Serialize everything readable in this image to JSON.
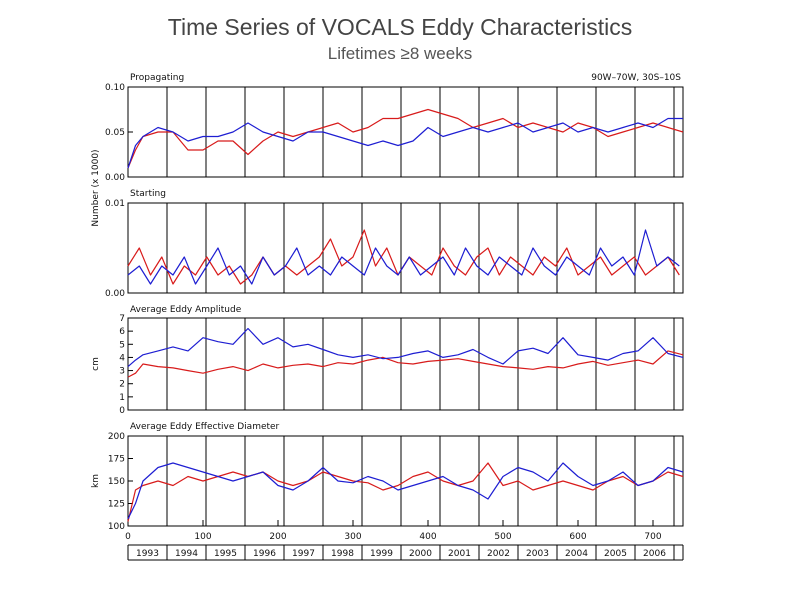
{
  "title": "Time Series of VOCALS Eddy Characteristics",
  "subtitle": "Lifetimes ≥8 weeks",
  "colors": {
    "series_a": "#d81b1b",
    "series_b": "#1e1ed2",
    "frame": "#000000",
    "text": "#111111"
  },
  "chart_data": [
    {
      "type": "line",
      "panel_label": "Propagating",
      "region_label": "90W–70W, 30S–10S",
      "ylim": [
        0,
        0.1
      ],
      "yticks": [
        "0.00",
        "0.05",
        "0.10"
      ],
      "ylabel": "Number (x 1000)",
      "xlim": [
        0,
        740
      ],
      "series": [
        {
          "name": "red",
          "color": "#d81b1b",
          "x": [
            0,
            10,
            20,
            40,
            60,
            80,
            100,
            120,
            140,
            160,
            180,
            200,
            220,
            240,
            260,
            280,
            300,
            320,
            340,
            360,
            380,
            400,
            420,
            440,
            460,
            480,
            500,
            520,
            540,
            560,
            580,
            600,
            620,
            640,
            660,
            680,
            700,
            720,
            740
          ],
          "values": [
            0.01,
            0.03,
            0.045,
            0.05,
            0.05,
            0.03,
            0.03,
            0.04,
            0.04,
            0.025,
            0.04,
            0.05,
            0.045,
            0.05,
            0.055,
            0.06,
            0.05,
            0.055,
            0.065,
            0.065,
            0.07,
            0.075,
            0.07,
            0.065,
            0.055,
            0.06,
            0.065,
            0.055,
            0.06,
            0.055,
            0.05,
            0.06,
            0.055,
            0.045,
            0.05,
            0.055,
            0.06,
            0.055,
            0.05
          ]
        },
        {
          "name": "blue",
          "color": "#1e1ed2",
          "x": [
            0,
            10,
            20,
            40,
            60,
            80,
            100,
            120,
            140,
            160,
            180,
            200,
            220,
            240,
            260,
            280,
            300,
            320,
            340,
            360,
            380,
            400,
            420,
            440,
            460,
            480,
            500,
            520,
            540,
            560,
            580,
            600,
            620,
            640,
            660,
            680,
            700,
            720,
            740
          ],
          "values": [
            0.01,
            0.035,
            0.045,
            0.055,
            0.05,
            0.04,
            0.045,
            0.045,
            0.05,
            0.06,
            0.05,
            0.045,
            0.04,
            0.05,
            0.05,
            0.045,
            0.04,
            0.035,
            0.04,
            0.035,
            0.04,
            0.055,
            0.045,
            0.05,
            0.055,
            0.05,
            0.055,
            0.06,
            0.05,
            0.055,
            0.06,
            0.05,
            0.055,
            0.05,
            0.055,
            0.06,
            0.055,
            0.065,
            0.065
          ]
        }
      ]
    },
    {
      "type": "line",
      "panel_label": "Starting",
      "ylim": [
        0,
        0.01
      ],
      "yticks": [
        "0.00",
        "0.01"
      ],
      "xlim": [
        0,
        740
      ],
      "series": [
        {
          "name": "red",
          "color": "#d81b1b",
          "x": [
            0,
            15,
            30,
            45,
            60,
            75,
            90,
            105,
            120,
            135,
            150,
            165,
            180,
            195,
            210,
            225,
            240,
            255,
            270,
            285,
            300,
            315,
            330,
            345,
            360,
            375,
            390,
            405,
            420,
            435,
            450,
            465,
            480,
            495,
            510,
            525,
            540,
            555,
            570,
            585,
            600,
            615,
            630,
            645,
            660,
            675,
            690,
            705,
            720,
            735
          ],
          "values": [
            0.003,
            0.005,
            0.002,
            0.004,
            0.001,
            0.003,
            0.002,
            0.004,
            0.002,
            0.003,
            0.001,
            0.002,
            0.004,
            0.002,
            0.003,
            0.002,
            0.003,
            0.004,
            0.006,
            0.003,
            0.004,
            0.007,
            0.003,
            0.005,
            0.002,
            0.004,
            0.003,
            0.002,
            0.005,
            0.003,
            0.002,
            0.004,
            0.005,
            0.002,
            0.004,
            0.003,
            0.002,
            0.004,
            0.003,
            0.005,
            0.002,
            0.003,
            0.004,
            0.002,
            0.003,
            0.004,
            0.002,
            0.003,
            0.004,
            0.002
          ]
        },
        {
          "name": "blue",
          "color": "#1e1ed2",
          "x": [
            0,
            15,
            30,
            45,
            60,
            75,
            90,
            105,
            120,
            135,
            150,
            165,
            180,
            195,
            210,
            225,
            240,
            255,
            270,
            285,
            300,
            315,
            330,
            345,
            360,
            375,
            390,
            405,
            420,
            435,
            450,
            465,
            480,
            495,
            510,
            525,
            540,
            555,
            570,
            585,
            600,
            615,
            630,
            645,
            660,
            675,
            690,
            705,
            720,
            735
          ],
          "values": [
            0.002,
            0.003,
            0.001,
            0.003,
            0.002,
            0.004,
            0.001,
            0.003,
            0.005,
            0.002,
            0.003,
            0.001,
            0.004,
            0.002,
            0.003,
            0.005,
            0.002,
            0.003,
            0.002,
            0.004,
            0.003,
            0.002,
            0.005,
            0.003,
            0.002,
            0.004,
            0.002,
            0.003,
            0.004,
            0.002,
            0.005,
            0.003,
            0.002,
            0.004,
            0.003,
            0.002,
            0.005,
            0.003,
            0.002,
            0.004,
            0.003,
            0.002,
            0.005,
            0.003,
            0.004,
            0.002,
            0.007,
            0.003,
            0.004,
            0.003
          ]
        }
      ]
    },
    {
      "type": "line",
      "panel_label": "Average Eddy Amplitude",
      "ylim": [
        0,
        7
      ],
      "yticks": [
        "0",
        "1",
        "2",
        "3",
        "4",
        "5",
        "6",
        "7"
      ],
      "ylabel": "cm",
      "xlim": [
        0,
        740
      ],
      "series": [
        {
          "name": "red",
          "color": "#d81b1b",
          "x": [
            0,
            10,
            20,
            40,
            60,
            80,
            100,
            120,
            140,
            160,
            180,
            200,
            220,
            240,
            260,
            280,
            300,
            320,
            340,
            360,
            380,
            400,
            420,
            440,
            460,
            480,
            500,
            520,
            540,
            560,
            580,
            600,
            620,
            640,
            660,
            680,
            700,
            720,
            740
          ],
          "values": [
            2.5,
            2.8,
            3.5,
            3.3,
            3.2,
            3.0,
            2.8,
            3.1,
            3.3,
            3.0,
            3.5,
            3.2,
            3.4,
            3.5,
            3.3,
            3.6,
            3.5,
            3.8,
            4.0,
            3.6,
            3.5,
            3.7,
            3.8,
            3.9,
            3.7,
            3.5,
            3.3,
            3.2,
            3.1,
            3.3,
            3.2,
            3.5,
            3.7,
            3.4,
            3.6,
            3.8,
            3.5,
            4.5,
            4.2
          ]
        },
        {
          "name": "blue",
          "color": "#1e1ed2",
          "x": [
            0,
            10,
            20,
            40,
            60,
            80,
            100,
            120,
            140,
            160,
            180,
            200,
            220,
            240,
            260,
            280,
            300,
            320,
            340,
            360,
            380,
            400,
            420,
            440,
            460,
            480,
            500,
            520,
            540,
            560,
            580,
            600,
            620,
            640,
            660,
            680,
            700,
            720,
            740
          ],
          "values": [
            3.3,
            3.8,
            4.2,
            4.5,
            4.8,
            4.5,
            5.5,
            5.2,
            5.0,
            6.2,
            5.0,
            5.5,
            4.8,
            5.0,
            4.6,
            4.2,
            4.0,
            4.2,
            3.9,
            4.0,
            4.3,
            4.5,
            4.0,
            4.2,
            4.6,
            4.0,
            3.5,
            4.5,
            4.7,
            4.3,
            5.5,
            4.2,
            4.0,
            3.8,
            4.3,
            4.5,
            5.5,
            4.3,
            4.0
          ]
        }
      ]
    },
    {
      "type": "line",
      "panel_label": "Average Eddy Effective Diameter",
      "ylim": [
        100,
        200
      ],
      "yticks": [
        "100",
        "125",
        "150",
        "175",
        "200"
      ],
      "ylabel": "km",
      "xlabel_ticks": [
        "0",
        "100",
        "200",
        "300",
        "400",
        "500",
        "600",
        "700"
      ],
      "xticks": [
        0,
        100,
        200,
        300,
        400,
        500,
        600,
        700
      ],
      "xlim": [
        0,
        740
      ],
      "series": [
        {
          "name": "red",
          "color": "#d81b1b",
          "x": [
            0,
            10,
            20,
            40,
            60,
            80,
            100,
            120,
            140,
            160,
            180,
            200,
            220,
            240,
            260,
            280,
            300,
            320,
            340,
            360,
            380,
            400,
            420,
            440,
            460,
            480,
            500,
            520,
            540,
            560,
            580,
            600,
            620,
            640,
            660,
            680,
            700,
            720,
            740
          ],
          "values": [
            105,
            140,
            145,
            150,
            145,
            155,
            150,
            155,
            160,
            155,
            160,
            150,
            145,
            150,
            160,
            155,
            150,
            148,
            140,
            145,
            155,
            160,
            150,
            145,
            150,
            170,
            145,
            150,
            140,
            145,
            150,
            145,
            140,
            150,
            155,
            145,
            150,
            160,
            155
          ]
        },
        {
          "name": "blue",
          "color": "#1e1ed2",
          "x": [
            0,
            10,
            20,
            40,
            60,
            80,
            100,
            120,
            140,
            160,
            180,
            200,
            220,
            240,
            260,
            280,
            300,
            320,
            340,
            360,
            380,
            400,
            420,
            440,
            460,
            480,
            500,
            520,
            540,
            560,
            580,
            600,
            620,
            640,
            660,
            680,
            700,
            720,
            740
          ],
          "values": [
            108,
            125,
            150,
            165,
            170,
            165,
            160,
            155,
            150,
            155,
            160,
            145,
            140,
            150,
            165,
            150,
            148,
            155,
            150,
            140,
            145,
            150,
            155,
            145,
            140,
            130,
            155,
            165,
            160,
            150,
            170,
            155,
            145,
            150,
            160,
            145,
            150,
            165,
            160
          ]
        }
      ]
    }
  ],
  "years": [
    "1993",
    "1994",
    "1995",
    "1996",
    "1997",
    "1998",
    "1999",
    "2000",
    "2001",
    "2002",
    "2003",
    "2004",
    "2005",
    "2006"
  ],
  "year_boundaries_weeks": [
    0,
    52,
    104,
    156,
    208,
    260,
    312,
    364,
    416,
    468,
    520,
    572,
    624,
    676,
    728
  ]
}
